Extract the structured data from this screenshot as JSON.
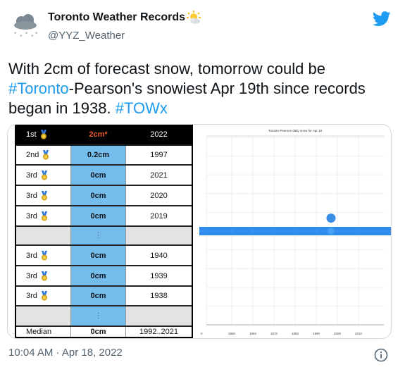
{
  "tweet": {
    "display_name": "Toronto Weather Records",
    "handle": "@YYZ_Weather",
    "text_part1": "With 2cm of forecast snow, tomorrow could be ",
    "hashtag_toronto": "#Toronto",
    "text_part2": "-Pearson's snowiest Apr 19th since records began in 1938. ",
    "hashtag_towx": "#TOWx",
    "timestamp": "10:04 AM · Apr 18, 2022"
  },
  "icons": {
    "avatar": "snow-cloud-icon",
    "name_emoji": "sun-behind-cloud-icon",
    "brand": "twitter-bird-icon",
    "info": "info-icon"
  },
  "colors": {
    "accent": "#1d9bf0",
    "cell_blue": "#74bcec",
    "forecast_orange": "#e75a2d",
    "dot_blue": "#3a8ee6"
  },
  "table": {
    "header": {
      "rank": "1st",
      "amount": "2cm*",
      "year": "2022"
    },
    "rows": [
      {
        "rank": "2nd",
        "amount": "0.2cm",
        "year": "1997"
      },
      {
        "rank": "3rd",
        "amount": "0cm",
        "year": "2021"
      },
      {
        "rank": "3rd",
        "amount": "0cm",
        "year": "2020"
      },
      {
        "rank": "3rd",
        "amount": "0cm",
        "year": "2019"
      },
      {
        "rank": "",
        "amount": "⋮",
        "year": ""
      },
      {
        "rank": "3rd",
        "amount": "0cm",
        "year": "1940"
      },
      {
        "rank": "3rd",
        "amount": "0cm",
        "year": "1939"
      },
      {
        "rank": "3rd",
        "amount": "0cm",
        "year": "1938"
      },
      {
        "rank": "",
        "amount": "⋮",
        "year": ""
      }
    ],
    "median": {
      "rank": "Median",
      "amount": "0cm",
      "year": "1992..2021"
    }
  },
  "chart_data": {
    "type": "scatter",
    "title": "Toronto-Pearson daily snow for Apr 19",
    "xlabel": "",
    "ylabel": "",
    "x_ticks": [
      "1950",
      "1960",
      "1970",
      "1980",
      "1990",
      "2000",
      "2010"
    ],
    "xlim": [
      1938,
      2022
    ],
    "ylim": [
      -6,
      6
    ],
    "grid": true,
    "series": [
      {
        "values": [
          {
            "x": 1997,
            "y": 0.2
          }
        ]
      }
    ],
    "zero_band_years": [
      1938,
      2021
    ]
  }
}
